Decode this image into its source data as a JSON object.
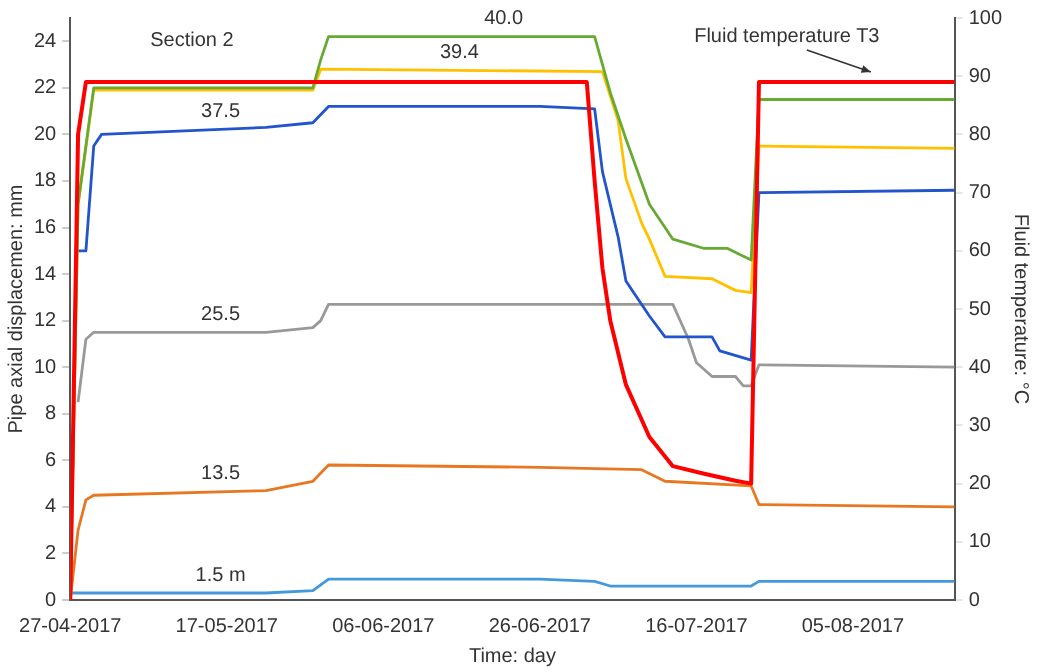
{
  "chart_data": {
    "type": "line",
    "xlabel": "Time: day",
    "ylabel": "Pipe axial displacemen: mm",
    "y2label": "Fluid temperature: °C",
    "annotations": [
      "Section 2"
    ],
    "xlim": [
      "2017-04-27",
      "2017-08-18"
    ],
    "xticks": [
      {
        "value": "2017-04-27",
        "label": "27-04-2017"
      },
      {
        "value": "2017-05-17",
        "label": "17-05-2017"
      },
      {
        "value": "2017-06-06",
        "label": "06-06-2017"
      },
      {
        "value": "2017-06-26",
        "label": "26-06-2017"
      },
      {
        "value": "2017-07-16",
        "label": "16-07-2017"
      },
      {
        "value": "2017-08-05",
        "label": "05-08-2017"
      }
    ],
    "ylim": [
      0,
      25
    ],
    "yticks": [
      0,
      2,
      4,
      6,
      8,
      10,
      12,
      14,
      16,
      18,
      20,
      22,
      24
    ],
    "y2lim": [
      0,
      100
    ],
    "y2ticks": [
      0,
      10,
      20,
      30,
      40,
      50,
      60,
      70,
      80,
      90,
      100
    ],
    "grid": false,
    "legend": false,
    "marker": "none",
    "line_style": "solid",
    "series": [
      {
        "name": "40.0",
        "color": "#66aa33",
        "x": [
          "2017-04-27",
          "2017-04-28",
          "2017-04-30",
          "2017-05-28",
          "2017-05-29",
          "2017-05-30",
          "2017-07-03",
          "2017-07-05",
          "2017-07-07",
          "2017-07-10",
          "2017-07-13",
          "2017-07-17",
          "2017-07-20",
          "2017-07-23",
          "2017-07-24",
          "2017-08-18"
        ],
        "values": [
          0,
          17,
          22,
          22,
          23.2,
          24.2,
          24.2,
          21.8,
          19.8,
          17,
          15.5,
          15.1,
          15.1,
          14.6,
          21.5,
          21.5
        ]
      },
      {
        "name": "39.4",
        "color": "#ffc000",
        "x": [
          "2017-04-27",
          "2017-04-28",
          "2017-04-30",
          "2017-05-28",
          "2017-05-29",
          "2017-07-04",
          "2017-07-06",
          "2017-07-07",
          "2017-07-09",
          "2017-07-10",
          "2017-07-12",
          "2017-07-18",
          "2017-07-21",
          "2017-07-23",
          "2017-07-24",
          "2017-08-18"
        ],
        "values": [
          0,
          17,
          21.9,
          21.9,
          22.8,
          22.7,
          20.6,
          18.1,
          16.2,
          15.5,
          13.9,
          13.8,
          13.3,
          13.2,
          19.5,
          19.4
        ]
      },
      {
        "name": "37.5",
        "color": "#2255cc",
        "x": [
          "2017-04-28",
          "2017-04-29",
          "2017-04-30",
          "2017-05-01",
          "2017-05-22",
          "2017-05-28",
          "2017-05-30",
          "2017-06-26",
          "2017-07-03",
          "2017-07-04",
          "2017-07-06",
          "2017-07-07",
          "2017-07-10",
          "2017-07-12",
          "2017-07-18",
          "2017-07-19",
          "2017-07-23",
          "2017-07-24",
          "2017-08-18"
        ],
        "values": [
          15,
          15,
          19.5,
          20,
          20.3,
          20.5,
          21.2,
          21.2,
          21.1,
          18.4,
          15.6,
          13.7,
          12.2,
          11.3,
          11.3,
          10.7,
          10.3,
          17.5,
          17.6
        ]
      },
      {
        "name": "25.5",
        "color": "#999999",
        "x": [
          "2017-04-28",
          "2017-04-29",
          "2017-04-30",
          "2017-05-22",
          "2017-05-28",
          "2017-05-29",
          "2017-05-30",
          "2017-07-13",
          "2017-07-15",
          "2017-07-16",
          "2017-07-18",
          "2017-07-21",
          "2017-07-22",
          "2017-07-23",
          "2017-07-24",
          "2017-08-18"
        ],
        "values": [
          8.5,
          11.2,
          11.5,
          11.5,
          11.7,
          12,
          12.7,
          12.7,
          11.2,
          10.2,
          9.6,
          9.6,
          9.2,
          9.2,
          10.1,
          10
        ]
      },
      {
        "name": "13.5",
        "color": "#e87722",
        "x": [
          "2017-04-27",
          "2017-04-28",
          "2017-04-29",
          "2017-04-30",
          "2017-05-22",
          "2017-05-28",
          "2017-05-30",
          "2017-06-26",
          "2017-07-09",
          "2017-07-12",
          "2017-07-23",
          "2017-07-24",
          "2017-08-18"
        ],
        "values": [
          0,
          3,
          4.3,
          4.5,
          4.7,
          5.1,
          5.8,
          5.7,
          5.6,
          5.1,
          4.9,
          4.1,
          4
        ]
      },
      {
        "name": "1.5 m",
        "color": "#4499dd",
        "x": [
          "2017-04-27",
          "2017-05-22",
          "2017-05-28",
          "2017-05-30",
          "2017-06-26",
          "2017-07-03",
          "2017-07-05",
          "2017-07-23",
          "2017-07-24",
          "2017-08-18"
        ],
        "values": [
          0.3,
          0.3,
          0.4,
          0.9,
          0.9,
          0.8,
          0.6,
          0.6,
          0.8,
          0.8
        ]
      },
      {
        "name": "Fluid temperature T3",
        "color": "#ff0000",
        "axis": "y2",
        "x": [
          "2017-04-27",
          "2017-04-28",
          "2017-04-29",
          "2017-07-02",
          "2017-07-03",
          "2017-07-04",
          "2017-07-05",
          "2017-07-07",
          "2017-07-10",
          "2017-07-13",
          "2017-07-17",
          "2017-07-21",
          "2017-07-23",
          "2017-07-24",
          "2017-08-18"
        ],
        "values": [
          0,
          80,
          89,
          89,
          72,
          57,
          48,
          37,
          28,
          23,
          21.7,
          20.5,
          20,
          89,
          89
        ]
      }
    ]
  }
}
